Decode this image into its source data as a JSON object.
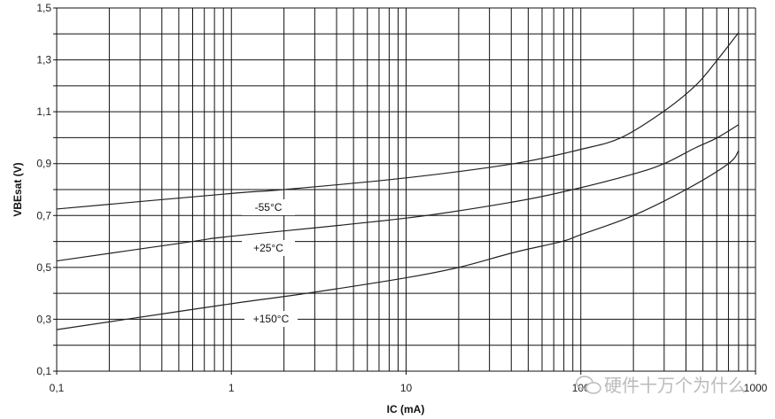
{
  "chart_data": {
    "type": "line",
    "title": "",
    "xlabel": "IC (mA)",
    "ylabel": "VBEsat (V)",
    "xscale": "log",
    "xlim": [
      0.1,
      1000
    ],
    "ylim": [
      0.1,
      1.5
    ],
    "grid": true,
    "x_ticks": [
      "0,1",
      "1",
      "10",
      "100",
      "1000"
    ],
    "y_ticks": [
      "0,1",
      "0,3",
      "0,5",
      "0,7",
      "0,9",
      "1,1",
      "1,3",
      "1,5"
    ],
    "line_color": "#222222",
    "series": [
      {
        "name": "-55°C",
        "x": [
          0.1,
          1,
          2,
          10,
          41.6,
          100,
          170,
          296,
          452,
          605,
          800
        ],
        "y": [
          0.725,
          0.785,
          0.8,
          0.845,
          0.9,
          0.955,
          1.0,
          1.1,
          1.2,
          1.3,
          1.405
        ]
      },
      {
        "name": "+25°C",
        "x": [
          0.1,
          0.6,
          1,
          10,
          41.6,
          90,
          200,
          300,
          450,
          605,
          800
        ],
        "y": [
          0.525,
          0.6,
          0.62,
          0.69,
          0.753,
          0.8,
          0.86,
          0.9,
          0.96,
          1.0,
          1.05
        ]
      },
      {
        "name": "+150°C",
        "x": [
          0.1,
          0.25,
          1,
          2.7,
          10,
          20,
          41.6,
          78,
          100,
          200,
          400,
          700,
          800
        ],
        "y": [
          0.26,
          0.3,
          0.36,
          0.4,
          0.46,
          0.5,
          0.558,
          0.6,
          0.626,
          0.7,
          0.8,
          0.9,
          0.95
        ]
      }
    ]
  },
  "watermark": {
    "text": "硬件十万个为什么",
    "icon": "wechat-icon"
  }
}
